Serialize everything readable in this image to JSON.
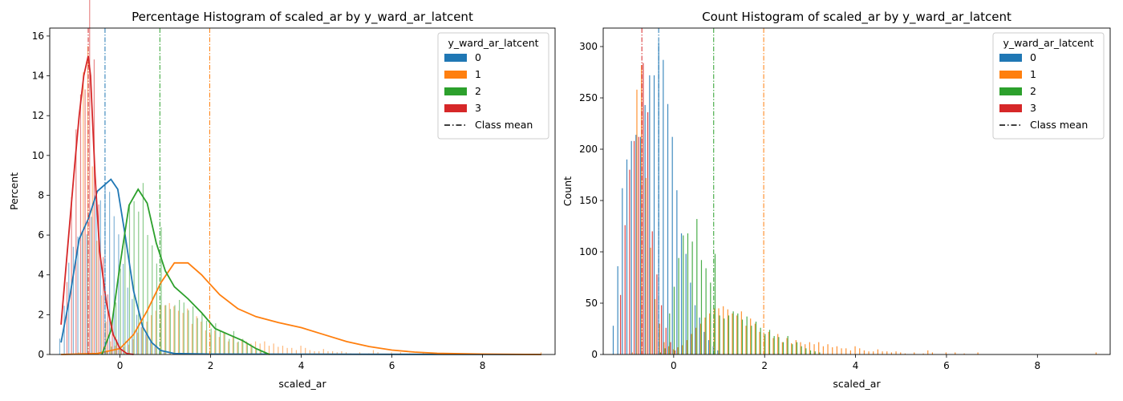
{
  "chart_data": [
    {
      "type": "histogram",
      "title": "Percentage Histogram of scaled_ar by y_ward_ar_latcent",
      "xlabel": "scaled_ar",
      "ylabel": "Percent",
      "xlim": [
        -1.55,
        9.6
      ],
      "ylim": [
        0,
        16.4
      ],
      "xticks": [
        0,
        2,
        4,
        6,
        8
      ],
      "yticks": [
        0,
        2,
        4,
        6,
        8,
        10,
        12,
        14,
        16
      ],
      "legend": {
        "title": "y_ward_ar_latcent",
        "position": "top-right",
        "entries": [
          "0",
          "1",
          "2",
          "3"
        ],
        "mean_label": "Class mean"
      },
      "class_means": [
        {
          "name": "0",
          "x": -0.33
        },
        {
          "name": "1",
          "x": 1.98
        },
        {
          "name": "2",
          "x": 0.88
        },
        {
          "name": "3",
          "x": -0.7
        }
      ],
      "kde": [
        {
          "name": "0",
          "x": [
            -1.3,
            -1.1,
            -0.9,
            -0.7,
            -0.5,
            -0.3,
            -0.2,
            -0.05,
            0.1,
            0.3,
            0.5,
            0.7,
            0.9,
            1.2,
            2.0,
            9.3
          ],
          "y": [
            0.6,
            3.0,
            5.8,
            6.8,
            8.2,
            8.6,
            8.8,
            8.3,
            6.2,
            3.2,
            1.4,
            0.6,
            0.2,
            0.05,
            0.02,
            0.0
          ]
        },
        {
          "name": "1",
          "x": [
            -1.3,
            -0.5,
            0.0,
            0.3,
            0.6,
            0.9,
            1.2,
            1.5,
            1.8,
            2.2,
            2.6,
            3.0,
            3.5,
            4.0,
            4.5,
            5.0,
            5.5,
            6.0,
            6.5,
            7.0,
            8.0,
            9.3
          ],
          "y": [
            0.0,
            0.05,
            0.3,
            1.0,
            2.2,
            3.6,
            4.6,
            4.6,
            4.0,
            3.0,
            2.3,
            1.9,
            1.6,
            1.35,
            1.0,
            0.65,
            0.4,
            0.22,
            0.12,
            0.06,
            0.02,
            0.0
          ]
        },
        {
          "name": "2",
          "x": [
            -0.4,
            -0.2,
            0.0,
            0.2,
            0.4,
            0.6,
            0.8,
            1.0,
            1.2,
            1.5,
            1.8,
            2.1,
            2.4,
            2.7,
            3.0,
            3.3
          ],
          "y": [
            0.0,
            1.2,
            4.5,
            7.5,
            8.3,
            7.6,
            5.6,
            4.2,
            3.4,
            2.8,
            2.1,
            1.3,
            1.0,
            0.7,
            0.3,
            0.0
          ]
        },
        {
          "name": "3",
          "x": [
            -1.3,
            -1.15,
            -1.0,
            -0.9,
            -0.8,
            -0.7,
            -0.65,
            -0.55,
            -0.45,
            -0.3,
            -0.15,
            0.0,
            0.15,
            0.3
          ],
          "y": [
            1.5,
            5.5,
            9.5,
            12.0,
            14.0,
            15.0,
            14.0,
            9.0,
            5.2,
            2.6,
            1.0,
            0.3,
            0.05,
            0.0
          ]
        }
      ]
    },
    {
      "type": "histogram",
      "title": "Count Histogram of scaled_ar by y_ward_ar_latcent",
      "xlabel": "scaled_ar",
      "ylabel": "Count",
      "xlim": [
        -1.55,
        9.6
      ],
      "ylim": [
        0,
        318
      ],
      "xticks": [
        0,
        2,
        4,
        6,
        8
      ],
      "yticks": [
        0,
        50,
        100,
        150,
        200,
        250,
        300
      ],
      "legend": {
        "title": "y_ward_ar_latcent",
        "position": "top-right",
        "entries": [
          "0",
          "1",
          "2",
          "3"
        ],
        "mean_label": "Class mean"
      },
      "class_means": [
        {
          "name": "0",
          "x": -0.33
        },
        {
          "name": "1",
          "x": 1.98
        },
        {
          "name": "2",
          "x": 0.88
        },
        {
          "name": "3",
          "x": -0.7
        }
      ]
    }
  ],
  "series": [
    {
      "name": "0",
      "color": "#1f77b4",
      "x": [
        -1.3,
        -1.2,
        -1.1,
        -1.0,
        -0.9,
        -0.8,
        -0.7,
        -0.6,
        -0.5,
        -0.4,
        -0.3,
        -0.2,
        -0.1,
        0.0,
        0.1,
        0.2,
        0.3,
        0.4,
        0.5,
        0.6,
        0.7,
        0.8,
        0.9,
        1.0
      ],
      "counts": [
        28,
        86,
        162,
        190,
        208,
        214,
        212,
        243,
        272,
        272,
        304,
        287,
        244,
        212,
        160,
        118,
        98,
        70,
        48,
        36,
        22,
        14,
        8,
        4
      ]
    },
    {
      "name": "1",
      "color": "#ff7f0e",
      "x": [
        -0.9,
        -0.8,
        -0.7,
        -0.6,
        -0.5,
        -0.4,
        -0.3,
        -0.2,
        -0.1,
        0.0,
        0.1,
        0.2,
        0.3,
        0.4,
        0.5,
        0.6,
        0.7,
        0.8,
        0.9,
        1.0,
        1.1,
        1.2,
        1.3,
        1.4,
        1.5,
        1.6,
        1.7,
        1.8,
        1.9,
        2.0,
        2.1,
        2.2,
        2.3,
        2.4,
        2.5,
        2.6,
        2.7,
        2.8,
        2.9,
        3.0,
        3.1,
        3.2,
        3.3,
        3.4,
        3.5,
        3.6,
        3.7,
        3.8,
        3.9,
        4.0,
        4.1,
        4.2,
        4.3,
        4.4,
        4.5,
        4.6,
        4.7,
        4.8,
        4.9,
        5.0,
        5.1,
        5.3,
        5.5,
        5.6,
        5.7,
        6.0,
        6.2,
        6.4,
        6.7,
        9.3
      ],
      "counts": [
        2,
        258,
        282,
        172,
        104,
        54,
        30,
        12,
        8,
        5,
        7,
        9,
        14,
        20,
        26,
        30,
        36,
        40,
        45,
        45,
        47,
        44,
        40,
        38,
        42,
        28,
        35,
        30,
        22,
        18,
        22,
        16,
        20,
        12,
        16,
        11,
        14,
        12,
        10,
        12,
        10,
        12,
        8,
        10,
        7,
        8,
        6,
        6,
        4,
        8,
        6,
        4,
        3,
        3,
        5,
        3,
        3,
        2,
        3,
        2,
        1,
        2,
        1,
        4,
        2,
        2,
        2,
        1,
        2,
        2
      ]
    },
    {
      "name": "2",
      "color": "#2ca02c",
      "x": [
        -0.3,
        -0.2,
        -0.1,
        0.0,
        0.1,
        0.2,
        0.3,
        0.4,
        0.5,
        0.6,
        0.7,
        0.8,
        0.9,
        1.0,
        1.1,
        1.2,
        1.3,
        1.4,
        1.5,
        1.6,
        1.7,
        1.8,
        1.9,
        2.0,
        2.1,
        2.2,
        2.3,
        2.4,
        2.5,
        2.6,
        2.7,
        2.8,
        2.9,
        3.0,
        3.1,
        3.2
      ],
      "counts": [
        2,
        6,
        40,
        66,
        94,
        116,
        118,
        110,
        132,
        92,
        84,
        70,
        98,
        38,
        35,
        38,
        42,
        40,
        34,
        37,
        28,
        32,
        26,
        20,
        24,
        18,
        17,
        12,
        18,
        10,
        12,
        8,
        6,
        4,
        3,
        2
      ]
    },
    {
      "name": "3",
      "color": "#d62728",
      "x": [
        -1.2,
        -1.1,
        -1.0,
        -0.9,
        -0.8,
        -0.7,
        -0.6,
        -0.5,
        -0.4,
        -0.3,
        -0.2,
        -0.1,
        0.0
      ],
      "counts": [
        58,
        126,
        180,
        208,
        212,
        284,
        236,
        120,
        78,
        48,
        26,
        12,
        4
      ]
    }
  ]
}
